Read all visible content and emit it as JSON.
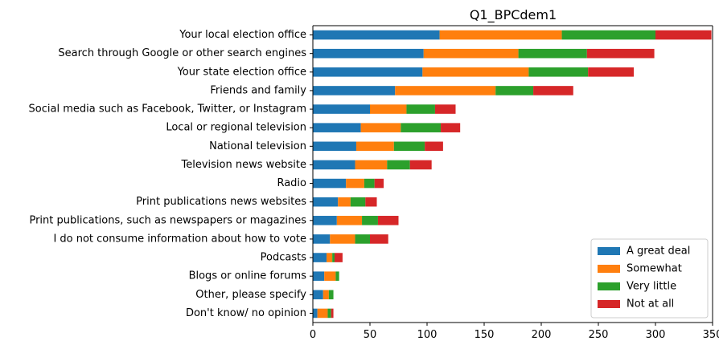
{
  "chart_data": {
    "type": "bar",
    "orientation": "horizontal",
    "stacked": true,
    "title": "Q1_BPCdem1",
    "xlabel": "",
    "ylabel": "",
    "xlim": [
      0,
      350
    ],
    "xticks": [
      0,
      50,
      100,
      150,
      200,
      250,
      300,
      350
    ],
    "grid": false,
    "legend_position": "lower-right",
    "categories": [
      "Your local election office",
      "Search through Google or other search engines",
      "Your state election office",
      "Friends and family",
      "Social media such as Facebook, Twitter, or Instagram",
      "Local or regional television",
      "National television",
      "Television news website",
      "Radio",
      "Print publications news websites",
      "Print publications, such as newspapers or magazines",
      "I do not consume information about how to vote",
      "Podcasts",
      "Blogs or online forums",
      "Other, please specify",
      "Don't know/ no opinion"
    ],
    "series": [
      {
        "name": "A great deal",
        "color": "#1f77b4",
        "values": [
          111,
          97,
          96,
          72,
          50,
          42,
          38,
          37,
          29,
          22,
          21,
          15,
          12,
          10,
          9,
          4
        ]
      },
      {
        "name": "Somewhat",
        "color": "#ff7f0e",
        "values": [
          107,
          83,
          93,
          88,
          32,
          35,
          33,
          28,
          16,
          11,
          22,
          22,
          5,
          10,
          5,
          9
        ]
      },
      {
        "name": "Very little",
        "color": "#2ca02c",
        "values": [
          82,
          60,
          52,
          33,
          25,
          35,
          27,
          20,
          9,
          13,
          14,
          13,
          2,
          3,
          4,
          3
        ]
      },
      {
        "name": "Not at all",
        "color": "#d62728",
        "values": [
          49,
          59,
          40,
          35,
          18,
          17,
          16,
          19,
          8,
          10,
          18,
          16,
          7,
          0,
          0,
          2
        ]
      }
    ]
  }
}
